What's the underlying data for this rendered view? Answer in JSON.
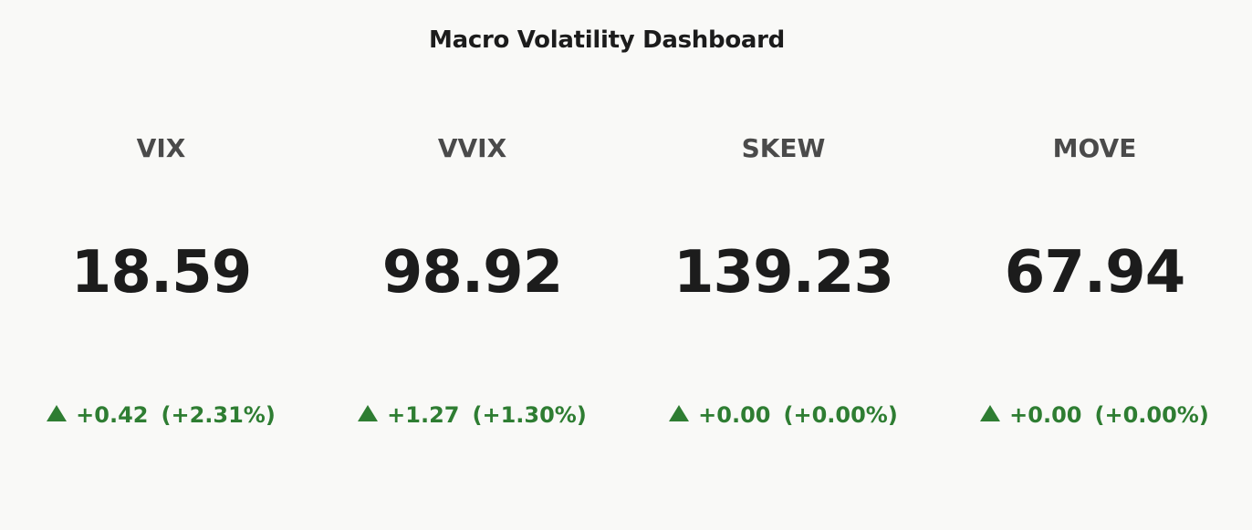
{
  "header": {
    "title": "Macro Volatility Dashboard"
  },
  "colors": {
    "background": "#f9f9f7",
    "up": "#2e7d32",
    "label": "#4a4a4a",
    "value": "#1c1c1c"
  },
  "metrics": [
    {
      "label": "VIX",
      "value": "18.59",
      "direction_icon": "triangle-up",
      "change": "+0.42",
      "change_pct": "(+2.31%)"
    },
    {
      "label": "VVIX",
      "value": "98.92",
      "direction_icon": "triangle-up",
      "change": "+1.27",
      "change_pct": "(+1.30%)"
    },
    {
      "label": "SKEW",
      "value": "139.23",
      "direction_icon": "triangle-up",
      "change": "+0.00",
      "change_pct": "(+0.00%)"
    },
    {
      "label": "MOVE",
      "value": "67.94",
      "direction_icon": "triangle-up",
      "change": "+0.00",
      "change_pct": "(+0.00%)"
    }
  ]
}
